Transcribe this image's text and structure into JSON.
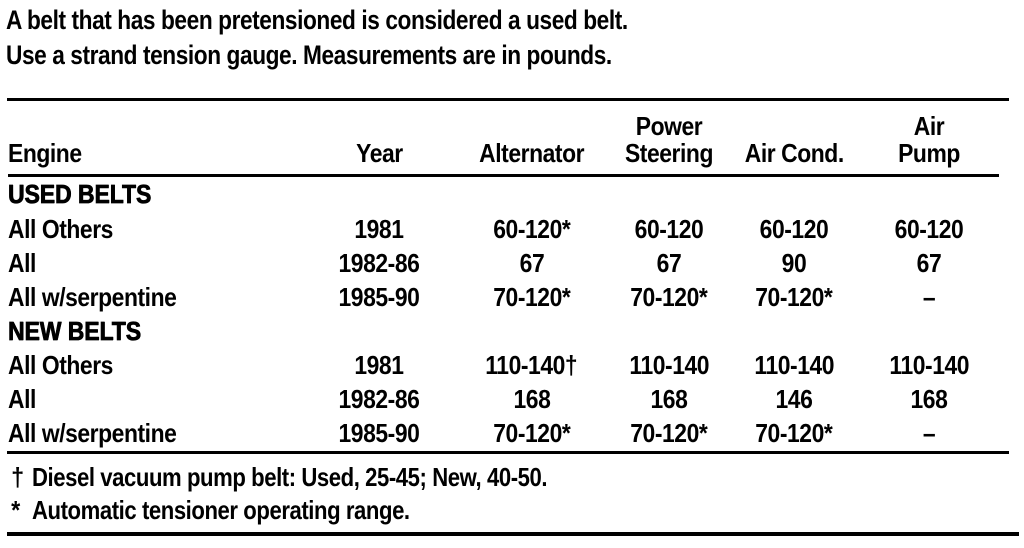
{
  "intro": {
    "line1": "A belt that has been pretensioned is considered a used belt.",
    "line2": "Use a strand tension gauge. Measurements are in pounds."
  },
  "table": {
    "columns": [
      {
        "label": "Engine"
      },
      {
        "label": "Year"
      },
      {
        "label": "Alternator"
      },
      {
        "label": "Power Steering",
        "line1": "Power",
        "line2": "Steering"
      },
      {
        "label": "Air Cond."
      },
      {
        "label": "Air Pump",
        "line1": "Air",
        "line2": "Pump"
      }
    ],
    "sections": [
      {
        "title": "USED BELTS",
        "rows": [
          {
            "engine": "All Others",
            "year": "1981",
            "alternator": "60-120*",
            "power_steering": "60-120",
            "air_cond": "60-120",
            "air_pump": "60-120"
          },
          {
            "engine": "All",
            "year": "1982-86",
            "alternator": "67",
            "power_steering": "67",
            "air_cond": "90",
            "air_pump": "67"
          },
          {
            "engine": "All w/serpentine",
            "year": "1985-90",
            "alternator": "70-120*",
            "power_steering": "70-120*",
            "air_cond": "70-120*",
            "air_pump": "–"
          }
        ]
      },
      {
        "title": "NEW BELTS",
        "rows": [
          {
            "engine": "All Others",
            "year": "1981",
            "alternator": "110-140†",
            "power_steering": "110-140",
            "air_cond": "110-140",
            "air_pump": "110-140"
          },
          {
            "engine": "All",
            "year": "1982-86",
            "alternator": "168",
            "power_steering": "168",
            "air_cond": "146",
            "air_pump": "168"
          },
          {
            "engine": "All w/serpentine",
            "year": "1985-90",
            "alternator": "70-120*",
            "power_steering": "70-120*",
            "air_cond": "70-120*",
            "air_pump": "–"
          }
        ]
      }
    ],
    "footnotes": [
      {
        "marker": "†",
        "text": "Diesel vacuum pump belt: Used, 25-45; New, 40-50."
      },
      {
        "marker": "*",
        "text": "Automatic tensioner operating range."
      }
    ]
  }
}
